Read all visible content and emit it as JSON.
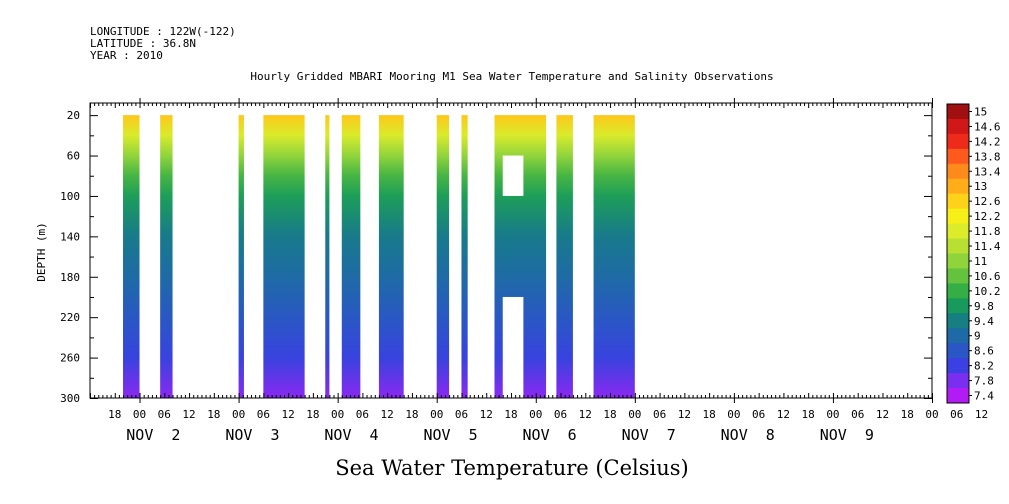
{
  "header": {
    "longitude": "LONGITUDE : 122W(-122)",
    "latitude": "LATITUDE : 36.8N",
    "year": "YEAR : 2010"
  },
  "chart_data": {
    "type": "heatmap",
    "title": "Hourly Gridded MBARI Mooring M1 Sea Water Temperature and Salinity Observations",
    "subtitle": "Sea Water Temperature (Celsius)",
    "ylabel": "DEPTH (m)",
    "y_ticks": [
      20,
      60,
      100,
      140,
      180,
      220,
      260,
      300
    ],
    "ylim": [
      300,
      8
    ],
    "y_reversed": true,
    "x_units": "hours since 2010-11-01 12:00",
    "xlim": [
      0,
      204
    ],
    "x_tick_labels": [
      "18",
      "00",
      "06",
      "12",
      "18",
      "00",
      "06",
      "12",
      "18",
      "00",
      "06",
      "12",
      "18",
      "00",
      "06",
      "12",
      "18",
      "00",
      "06",
      "12",
      "18",
      "00",
      "06",
      "12",
      "18",
      "00",
      "06",
      "12",
      "18",
      "00",
      "06",
      "12",
      "18",
      "00",
      "06",
      "12"
    ],
    "date_labels": [
      {
        "text": "NOV  2",
        "hour": 18
      },
      {
        "text": "NOV  3",
        "hour": 42
      },
      {
        "text": "NOV  4",
        "hour": 66
      },
      {
        "text": "NOV  5",
        "hour": 90
      },
      {
        "text": "NOV  6",
        "hour": 114
      },
      {
        "text": "NOV  7",
        "hour": 138
      },
      {
        "text": "NOV  8",
        "hour": 162
      },
      {
        "text": "NOV  9",
        "hour": 186
      }
    ],
    "data_blocks": [
      {
        "start": 8.0,
        "end": 12.0
      },
      {
        "start": 17.0,
        "end": 20.0
      },
      {
        "start": 36.0,
        "end": 37.3
      },
      {
        "start": 42.0,
        "end": 52.0
      },
      {
        "start": 57.0,
        "end": 58.0
      },
      {
        "start": 61.0,
        "end": 65.5
      },
      {
        "start": 70.0,
        "end": 76.0
      },
      {
        "start": 84.0,
        "end": 87.0
      },
      {
        "start": 90.0,
        "end": 91.5
      },
      {
        "start": 98.0,
        "end": 110.5
      },
      {
        "start": 113.0,
        "end": 117.0
      },
      {
        "start": 122.0,
        "end": 132.0
      }
    ],
    "gaps": [
      {
        "start": 100.0,
        "end": 105.0,
        "depth_top": 60,
        "depth_bottom": 100
      },
      {
        "start": 100.0,
        "end": 105.0,
        "depth_top": 200,
        "depth_bottom": 300
      }
    ],
    "temperature_profile": [
      {
        "depth": 20,
        "temp": 12.8
      },
      {
        "depth": 40,
        "temp": 11.8
      },
      {
        "depth": 60,
        "temp": 11.0
      },
      {
        "depth": 80,
        "temp": 10.3
      },
      {
        "depth": 100,
        "temp": 9.8
      },
      {
        "depth": 140,
        "temp": 9.2
      },
      {
        "depth": 180,
        "temp": 8.9
      },
      {
        "depth": 220,
        "temp": 8.5
      },
      {
        "depth": 260,
        "temp": 8.1
      },
      {
        "depth": 300,
        "temp": 7.5
      }
    ],
    "colorbar": {
      "levels": [
        "15",
        "14.6",
        "14.2",
        "13.8",
        "13.4",
        "13",
        "12.6",
        "12.2",
        "11.8",
        "11.4",
        "11",
        "10.6",
        "10.2",
        "9.8",
        "9.4",
        "9",
        "8.6",
        "8.2",
        "7.8",
        "7.4"
      ],
      "colors": [
        "#a01010",
        "#d01818",
        "#ee2a1a",
        "#ff5a1e",
        "#ff8a1c",
        "#ffae1a",
        "#ffd21a",
        "#f6f018",
        "#dcec2a",
        "#b8e032",
        "#90d43c",
        "#64c23e",
        "#36ae46",
        "#189a5c",
        "#167f82",
        "#1e6aa6",
        "#2a56c6",
        "#3a40e2",
        "#7a2ef0",
        "#b21cf4"
      ],
      "max": 15.2,
      "min": 7.2
    }
  }
}
